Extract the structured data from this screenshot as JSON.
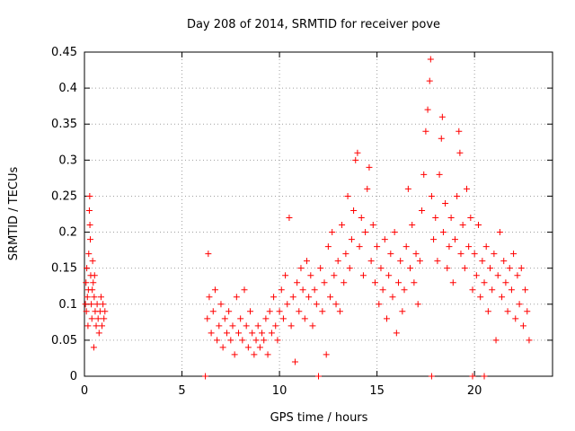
{
  "chart_data": {
    "type": "scatter",
    "title": "Day 208 of 2014, SRMTID for receiver pove",
    "xlabel": "GPS time / hours",
    "ylabel": "SRMTID / TECUs",
    "xlim": [
      0,
      24
    ],
    "ylim": [
      0,
      0.45
    ],
    "xticks": [
      0,
      5,
      10,
      15,
      20
    ],
    "xtick_labels": [
      "0",
      "5",
      "10",
      "15",
      "20"
    ],
    "yticks": [
      0,
      0.05,
      0.1,
      0.15,
      0.2,
      0.25,
      0.3,
      0.35,
      0.4,
      0.45
    ],
    "ytick_labels": [
      "0",
      "0.05",
      "0.1",
      "0.15",
      "0.2",
      "0.25",
      "0.3",
      "0.35",
      "0.4",
      "0.45"
    ],
    "grid": true,
    "marker": "plus",
    "color": "#ff0000",
    "series": [
      {
        "name": "SRMTID",
        "points": [
          [
            0.05,
            0.1
          ],
          [
            0.08,
            0.13
          ],
          [
            0.1,
            0.09
          ],
          [
            0.12,
            0.15
          ],
          [
            0.15,
            0.11
          ],
          [
            0.18,
            0.07
          ],
          [
            0.2,
            0.12
          ],
          [
            0.22,
            0.17
          ],
          [
            0.25,
            0.23
          ],
          [
            0.27,
            0.25
          ],
          [
            0.28,
            0.21
          ],
          [
            0.3,
            0.19
          ],
          [
            0.32,
            0.14
          ],
          [
            0.35,
            0.1
          ],
          [
            0.38,
            0.08
          ],
          [
            0.4,
            0.12
          ],
          [
            0.42,
            0.16
          ],
          [
            0.45,
            0.13
          ],
          [
            0.48,
            0.04
          ],
          [
            0.5,
            0.11
          ],
          [
            0.52,
            0.14
          ],
          [
            0.55,
            0.09
          ],
          [
            0.6,
            0.07
          ],
          [
            0.65,
            0.1
          ],
          [
            0.7,
            0.08
          ],
          [
            0.75,
            0.06
          ],
          [
            0.8,
            0.09
          ],
          [
            0.85,
            0.11
          ],
          [
            0.9,
            0.07
          ],
          [
            0.95,
            0.1
          ],
          [
            1.0,
            0.08
          ],
          [
            1.05,
            0.09
          ],
          [
            6.2,
            0.0
          ],
          [
            6.3,
            0.08
          ],
          [
            6.35,
            0.17
          ],
          [
            6.4,
            0.11
          ],
          [
            6.5,
            0.06
          ],
          [
            6.6,
            0.09
          ],
          [
            6.7,
            0.12
          ],
          [
            6.8,
            0.05
          ],
          [
            6.9,
            0.07
          ],
          [
            7.0,
            0.1
          ],
          [
            7.1,
            0.04
          ],
          [
            7.2,
            0.08
          ],
          [
            7.3,
            0.06
          ],
          [
            7.4,
            0.09
          ],
          [
            7.5,
            0.05
          ],
          [
            7.6,
            0.07
          ],
          [
            7.7,
            0.03
          ],
          [
            7.8,
            0.11
          ],
          [
            7.9,
            0.06
          ],
          [
            8.0,
            0.08
          ],
          [
            8.1,
            0.05
          ],
          [
            8.2,
            0.12
          ],
          [
            8.3,
            0.07
          ],
          [
            8.4,
            0.04
          ],
          [
            8.5,
            0.09
          ],
          [
            8.6,
            0.06
          ],
          [
            8.7,
            0.03
          ],
          [
            8.8,
            0.05
          ],
          [
            8.9,
            0.07
          ],
          [
            9.0,
            0.04
          ],
          [
            9.1,
            0.06
          ],
          [
            9.2,
            0.05
          ],
          [
            9.3,
            0.08
          ],
          [
            9.4,
            0.03
          ],
          [
            9.5,
            0.09
          ],
          [
            9.6,
            0.06
          ],
          [
            9.7,
            0.11
          ],
          [
            9.8,
            0.07
          ],
          [
            9.9,
            0.05
          ],
          [
            10.0,
            0.09
          ],
          [
            10.1,
            0.12
          ],
          [
            10.2,
            0.08
          ],
          [
            10.3,
            0.14
          ],
          [
            10.4,
            0.1
          ],
          [
            10.5,
            0.22
          ],
          [
            10.6,
            0.07
          ],
          [
            10.7,
            0.11
          ],
          [
            10.8,
            0.02
          ],
          [
            10.9,
            0.13
          ],
          [
            11.0,
            0.09
          ],
          [
            11.1,
            0.15
          ],
          [
            11.2,
            0.12
          ],
          [
            11.3,
            0.08
          ],
          [
            11.4,
            0.16
          ],
          [
            11.5,
            0.11
          ],
          [
            11.6,
            0.14
          ],
          [
            11.7,
            0.07
          ],
          [
            11.8,
            0.12
          ],
          [
            11.9,
            0.1
          ],
          [
            12.0,
            0.0
          ],
          [
            12.1,
            0.15
          ],
          [
            12.2,
            0.09
          ],
          [
            12.3,
            0.13
          ],
          [
            12.4,
            0.03
          ],
          [
            12.5,
            0.18
          ],
          [
            12.6,
            0.11
          ],
          [
            12.7,
            0.2
          ],
          [
            12.8,
            0.14
          ],
          [
            12.9,
            0.1
          ],
          [
            13.0,
            0.16
          ],
          [
            13.1,
            0.09
          ],
          [
            13.2,
            0.21
          ],
          [
            13.3,
            0.13
          ],
          [
            13.4,
            0.17
          ],
          [
            13.5,
            0.25
          ],
          [
            13.6,
            0.15
          ],
          [
            13.7,
            0.19
          ],
          [
            13.8,
            0.23
          ],
          [
            13.9,
            0.3
          ],
          [
            14.0,
            0.31
          ],
          [
            14.1,
            0.18
          ],
          [
            14.2,
            0.22
          ],
          [
            14.3,
            0.14
          ],
          [
            14.4,
            0.2
          ],
          [
            14.5,
            0.26
          ],
          [
            14.6,
            0.29
          ],
          [
            14.7,
            0.16
          ],
          [
            14.8,
            0.21
          ],
          [
            14.9,
            0.13
          ],
          [
            15.0,
            0.18
          ],
          [
            15.1,
            0.1
          ],
          [
            15.2,
            0.15
          ],
          [
            15.3,
            0.12
          ],
          [
            15.4,
            0.19
          ],
          [
            15.5,
            0.08
          ],
          [
            15.6,
            0.14
          ],
          [
            15.7,
            0.17
          ],
          [
            15.8,
            0.11
          ],
          [
            15.9,
            0.2
          ],
          [
            16.0,
            0.06
          ],
          [
            16.1,
            0.13
          ],
          [
            16.2,
            0.16
          ],
          [
            16.3,
            0.09
          ],
          [
            16.4,
            0.12
          ],
          [
            16.5,
            0.18
          ],
          [
            16.6,
            0.26
          ],
          [
            16.7,
            0.15
          ],
          [
            16.8,
            0.21
          ],
          [
            16.9,
            0.13
          ],
          [
            17.0,
            0.17
          ],
          [
            17.1,
            0.1
          ],
          [
            17.2,
            0.16
          ],
          [
            17.3,
            0.23
          ],
          [
            17.4,
            0.28
          ],
          [
            17.5,
            0.34
          ],
          [
            17.6,
            0.37
          ],
          [
            17.7,
            0.41
          ],
          [
            17.75,
            0.44
          ],
          [
            17.8,
            0.25
          ],
          [
            17.9,
            0.19
          ],
          [
            18.0,
            0.22
          ],
          [
            18.1,
            0.16
          ],
          [
            18.2,
            0.28
          ],
          [
            18.3,
            0.33
          ],
          [
            18.35,
            0.36
          ],
          [
            18.4,
            0.2
          ],
          [
            18.5,
            0.24
          ],
          [
            18.6,
            0.15
          ],
          [
            18.7,
            0.18
          ],
          [
            18.8,
            0.22
          ],
          [
            18.9,
            0.13
          ],
          [
            19.0,
            0.19
          ],
          [
            19.1,
            0.25
          ],
          [
            19.2,
            0.34
          ],
          [
            19.25,
            0.31
          ],
          [
            19.3,
            0.17
          ],
          [
            19.4,
            0.21
          ],
          [
            19.5,
            0.15
          ],
          [
            19.6,
            0.26
          ],
          [
            19.7,
            0.18
          ],
          [
            19.8,
            0.22
          ],
          [
            19.9,
            0.12
          ],
          [
            20.0,
            0.17
          ],
          [
            20.1,
            0.14
          ],
          [
            20.2,
            0.21
          ],
          [
            20.3,
            0.11
          ],
          [
            20.4,
            0.16
          ],
          [
            20.5,
            0.13
          ],
          [
            20.6,
            0.18
          ],
          [
            20.7,
            0.09
          ],
          [
            20.8,
            0.15
          ],
          [
            20.9,
            0.12
          ],
          [
            21.0,
            0.17
          ],
          [
            21.1,
            0.05
          ],
          [
            21.2,
            0.14
          ],
          [
            21.3,
            0.2
          ],
          [
            21.4,
            0.11
          ],
          [
            21.5,
            0.16
          ],
          [
            21.6,
            0.13
          ],
          [
            21.7,
            0.09
          ],
          [
            21.8,
            0.15
          ],
          [
            21.9,
            0.12
          ],
          [
            22.0,
            0.17
          ],
          [
            22.1,
            0.08
          ],
          [
            22.2,
            0.14
          ],
          [
            22.3,
            0.1
          ],
          [
            22.4,
            0.15
          ],
          [
            22.5,
            0.07
          ],
          [
            22.6,
            0.12
          ],
          [
            22.7,
            0.09
          ],
          [
            22.8,
            0.05
          ],
          [
            17.8,
            0.0
          ],
          [
            19.9,
            0.0
          ],
          [
            20.5,
            0.0
          ]
        ]
      }
    ]
  }
}
